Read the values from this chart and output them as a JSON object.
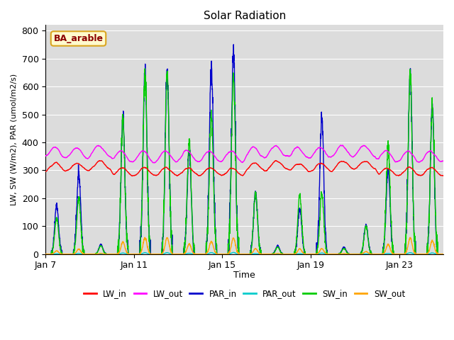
{
  "title": "Solar Radiation",
  "ylabel": "LW, SW (W/m2), PAR (umol/m2/s)",
  "xlabel": "Time",
  "annotation_label": "BA_arable",
  "annotation_color": "#8B0000",
  "annotation_bg": "#FFFACD",
  "annotation_border": "#DAA520",
  "ylim": [
    0,
    820
  ],
  "yticks": [
    0,
    100,
    200,
    300,
    400,
    500,
    600,
    700,
    800
  ],
  "xtick_labels": [
    "Jan 7",
    "Jan 11",
    "Jan 15",
    "Jan 19",
    "Jan 23"
  ],
  "xtick_positions": [
    0,
    4,
    8,
    12,
    16
  ],
  "series": {
    "LW_in": {
      "color": "#FF0000",
      "lw": 1.0
    },
    "LW_out": {
      "color": "#FF00FF",
      "lw": 1.0
    },
    "PAR_in": {
      "color": "#0000CC",
      "lw": 1.0
    },
    "PAR_out": {
      "color": "#00CCCC",
      "lw": 1.0
    },
    "SW_in": {
      "color": "#00CC00",
      "lw": 1.0
    },
    "SW_out": {
      "color": "#FFA500",
      "lw": 1.0
    }
  },
  "n_days": 18,
  "ppd": 144,
  "seed": 42,
  "bg_color": "#DCDCDC",
  "clear_days": [
    3,
    4,
    5,
    6,
    7,
    8,
    15,
    16,
    17
  ],
  "partial_days": [
    0,
    1,
    9,
    11,
    12
  ],
  "cloudy_days": [
    2,
    10,
    13,
    14
  ]
}
